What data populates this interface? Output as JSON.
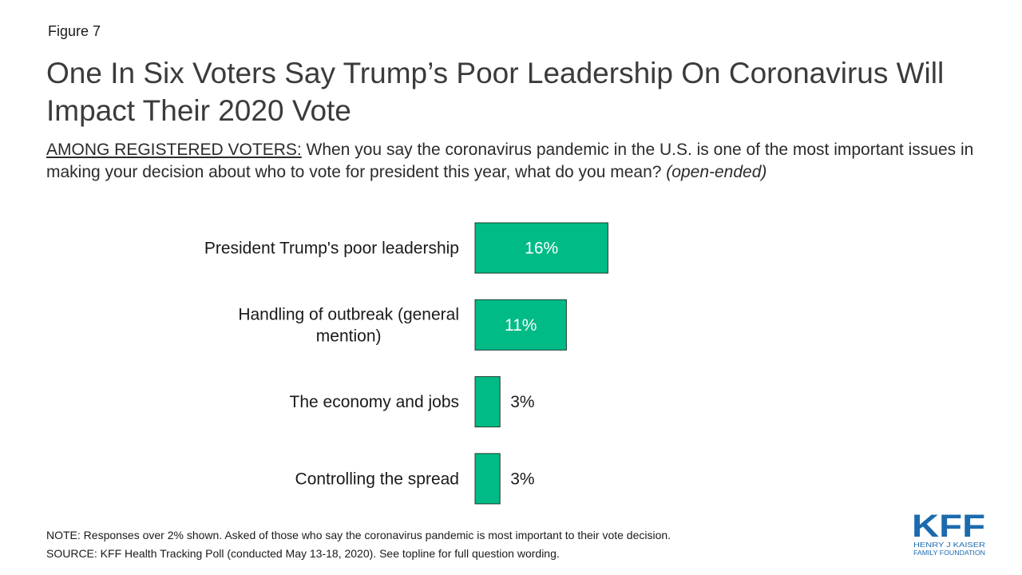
{
  "figure_label": "Figure 7",
  "title": "One In Six Voters Say Trump’s Poor Leadership On Coronavirus Will Impact Their 2020 Vote",
  "question": {
    "lead": "AMONG REGISTERED VOTERS:",
    "text": " When you say the coronavirus pandemic in the U.S. is one of the most important issues in making your decision about who to vote for president this year, what do you mean? ",
    "tail": "(open-ended)"
  },
  "chart_data": {
    "type": "bar",
    "orientation": "horizontal",
    "categories": [
      [
        "President Trump's poor leadership"
      ],
      [
        "Handling of outbreak (general",
        "mention)"
      ],
      [
        "The economy and jobs"
      ],
      [
        "Controlling the spread"
      ]
    ],
    "values": [
      16,
      11,
      3,
      3
    ],
    "value_labels": [
      "16%",
      "11%",
      "3%",
      "3%"
    ],
    "bar_color": "#00BB86",
    "bar_outline": "#1f3a2e",
    "inside_label_color": "#ffffff",
    "outside_label_color": "#1a1a1a",
    "grid": false
  },
  "notes": {
    "note": "NOTE: Responses over 2% shown. Asked of those who say the coronavirus pandemic is most important to their vote decision.",
    "source": "SOURCE: KFF Health Tracking Poll (conducted May 13-18, 2020). See topline for full question wording."
  },
  "logo": {
    "name": "KFF",
    "line1": "HENRY J KAISER",
    "line2": "FAMILY FOUNDATION",
    "color": "#1B6AAE"
  }
}
